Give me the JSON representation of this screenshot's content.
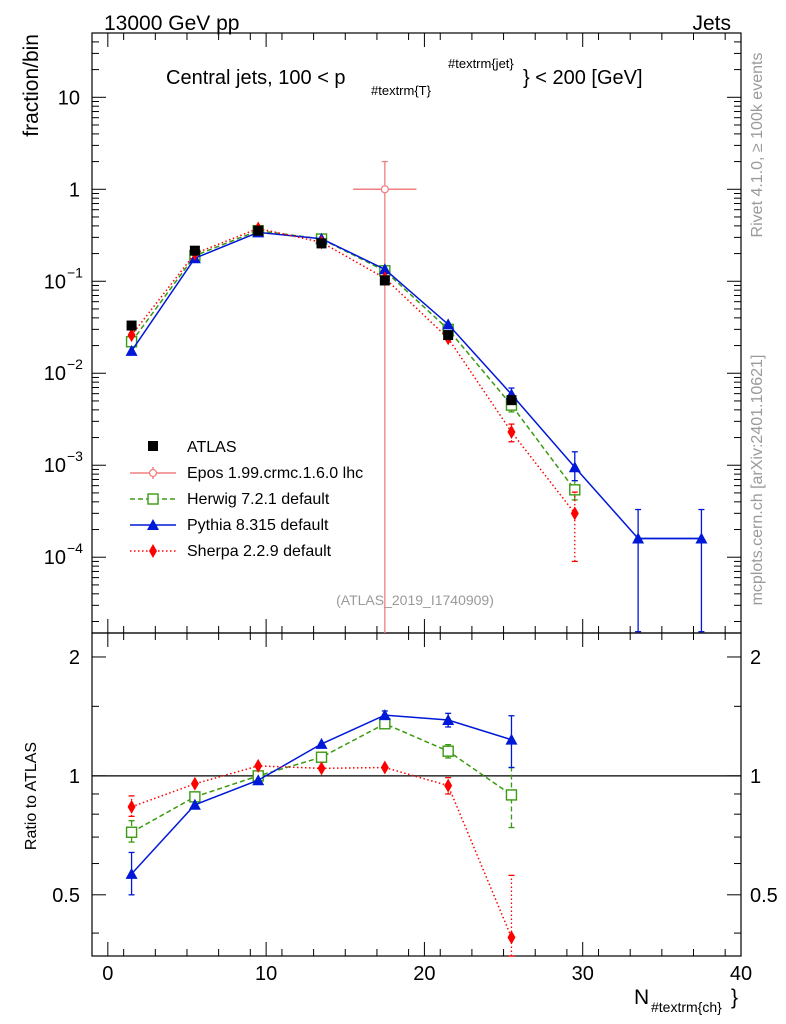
{
  "header": {
    "left": "13000 GeV pp",
    "right": "Jets"
  },
  "side_labels": {
    "top": "Rivet 4.1.0, ≥ 100k events",
    "bottom": "mcplots.cern.ch [arXiv:2401.10621]"
  },
  "chart_data": {
    "type": "line",
    "title_main": "Central jets, 100 < p",
    "title_sub": "#textrm{T}",
    "title_sup": "#textrm{jet}",
    "title_tail": "} < 200 [GeV]",
    "analysis_id": "(ATLAS_2019_I1740909)",
    "xlabel_main": "N",
    "xlabel_sub": "#textrm{ch}",
    "xlabel_tail": "}",
    "ylabel": "fraction/bin",
    "ratio_ylabel": "Ratio to ATLAS",
    "xlim": [
      -1,
      40
    ],
    "ylim": [
      1.5e-05,
      50
    ],
    "ratio_ylim": [
      0.35,
      2.3
    ],
    "x_ticks": [
      0,
      10,
      20,
      30,
      40
    ],
    "x_tick_labels": [
      "0",
      "10",
      "20",
      "30",
      "40"
    ],
    "y_ticks": [
      0.0001,
      0.001,
      0.01,
      0.1,
      1,
      10
    ],
    "y_tick_labels": [
      {
        "base": "10",
        "exp": "−4"
      },
      {
        "base": "10",
        "exp": "−3"
      },
      {
        "base": "10",
        "exp": "−2"
      },
      {
        "base": "10",
        "exp": "−1"
      },
      {
        "base": "1",
        "exp": ""
      },
      {
        "base": "10",
        "exp": ""
      }
    ],
    "ratio_ticks": [
      0.5,
      1,
      2
    ],
    "ratio_tick_labels": [
      "0.5",
      "1",
      "2"
    ],
    "data": {
      "name": "ATLAS",
      "color": "#000000",
      "x": [
        1.5,
        5.5,
        9.5,
        13.5,
        17.5,
        21.5,
        25.5
      ],
      "y": [
        0.033,
        0.215,
        0.355,
        0.258,
        0.102,
        0.026,
        0.0051
      ]
    },
    "series": [
      {
        "name": "Epos 1.99.crmc.1.6.0 lhc",
        "color": "#f08080",
        "style": "solid",
        "marker": "open-cross",
        "x": [
          17.5
        ],
        "y": [
          1.0
        ],
        "y_err": [
          [
            0.0,
            2.0
          ]
        ],
        "x_err": [
          [
            15.5,
            19.5
          ]
        ],
        "ratio": []
      },
      {
        "name": "Herwig 7.2.1 default",
        "color": "#3a9a10",
        "style": "dashed",
        "marker": "open-square",
        "x": [
          1.5,
          5.5,
          9.5,
          13.5,
          17.5,
          21.5,
          25.5,
          29.5
        ],
        "y": [
          0.022,
          0.19,
          0.355,
          0.288,
          0.13,
          0.03,
          0.0045,
          0.00054
        ],
        "y_err": [
          null,
          null,
          null,
          null,
          null,
          null,
          [
            0.0038,
            0.0052
          ],
          [
            0.00042,
            0.00068
          ]
        ],
        "ratio": [
          0.72,
          0.885,
          1.0,
          1.115,
          1.355,
          1.155,
          0.895
        ],
        "ratio_err": [
          [
            0.68,
            0.77
          ],
          null,
          null,
          null,
          [
            1.32,
            1.39
          ],
          [
            1.11,
            1.2
          ],
          [
            0.74,
            1.05
          ]
        ]
      },
      {
        "name": "Pythia 8.315 default",
        "color": "#0018d8",
        "style": "solid",
        "marker": "filled-triangle",
        "x": [
          1.5,
          5.5,
          9.5,
          13.5,
          17.5,
          21.5,
          25.5,
          29.5,
          33.5,
          37.5
        ],
        "y": [
          0.0175,
          0.178,
          0.34,
          0.29,
          0.135,
          0.034,
          0.0059,
          0.00095,
          0.00016,
          0.00016
        ],
        "y_err": [
          null,
          null,
          null,
          null,
          null,
          null,
          [
            0.0051,
            0.0069
          ],
          [
            0.00068,
            0.0014
          ],
          [
            1.55e-05,
            0.00033
          ],
          [
            1.55e-05,
            0.00033
          ]
        ],
        "ratio": [
          0.565,
          0.845,
          0.975,
          1.205,
          1.425,
          1.385,
          1.235
        ],
        "ratio_err": [
          [
            0.5,
            0.64
          ],
          null,
          null,
          null,
          [
            1.39,
            1.46
          ],
          [
            1.33,
            1.44
          ],
          [
            1.05,
            1.42
          ]
        ]
      },
      {
        "name": "Sherpa 2.2.9 default",
        "color": "#ff0000",
        "style": "dotted",
        "marker": "filled-diamond",
        "x": [
          1.5,
          5.5,
          9.5,
          13.5,
          17.5,
          21.5,
          25.5,
          29.5
        ],
        "y": [
          0.026,
          0.2,
          0.375,
          0.265,
          0.108,
          0.024,
          0.0023,
          0.0003
        ],
        "y_err": [
          null,
          null,
          null,
          null,
          null,
          null,
          [
            0.0018,
            0.0028
          ],
          [
            9e-05,
            0.00051
          ]
        ],
        "ratio": [
          0.835,
          0.955,
          1.06,
          1.045,
          1.05,
          0.945,
          0.39
        ],
        "ratio_err": [
          [
            0.79,
            0.89
          ],
          null,
          null,
          null,
          null,
          [
            0.9,
            0.99
          ],
          [
            0.35,
            0.56
          ]
        ]
      }
    ]
  }
}
